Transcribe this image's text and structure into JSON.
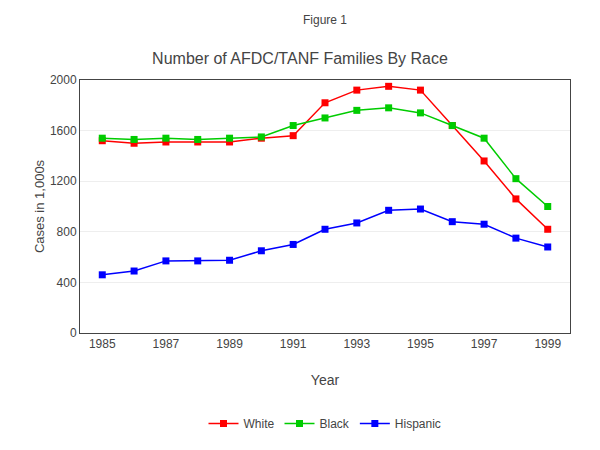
{
  "chart_data": {
    "type": "line",
    "subtitle": "Figure 1",
    "title": "Number of AFDC/TANF Families By Race",
    "x_label": "Year",
    "y_label": "Cases in 1,000s",
    "x": [
      1985,
      1986,
      1987,
      1988,
      1989,
      1990,
      1991,
      1992,
      1993,
      1994,
      1995,
      1996,
      1997,
      1998,
      1999
    ],
    "series": [
      {
        "name": "White",
        "color": "#ff0000",
        "values": [
          1520,
          1500,
          1510,
          1510,
          1510,
          1540,
          1560,
          1820,
          1920,
          1950,
          1920,
          1640,
          1360,
          1060,
          820
        ]
      },
      {
        "name": "Black",
        "color": "#00cc00",
        "values": [
          1540,
          1530,
          1540,
          1530,
          1540,
          1550,
          1640,
          1700,
          1760,
          1780,
          1740,
          1640,
          1540,
          1220,
          1000
        ]
      },
      {
        "name": "Hispanic",
        "color": "#0000ff",
        "values": [
          460,
          490,
          570,
          570,
          575,
          650,
          700,
          820,
          870,
          970,
          980,
          880,
          860,
          750,
          680
        ]
      }
    ],
    "xlim": [
      1984.3,
      1999.7
    ],
    "xticks": [
      1985,
      1987,
      1989,
      1991,
      1993,
      1995,
      1997,
      1999
    ],
    "ylim": [
      0,
      2000
    ],
    "yticks": [
      0,
      400,
      800,
      1200,
      1600,
      2000
    ],
    "grid": "y",
    "legend": "bottom",
    "marker": "square"
  }
}
